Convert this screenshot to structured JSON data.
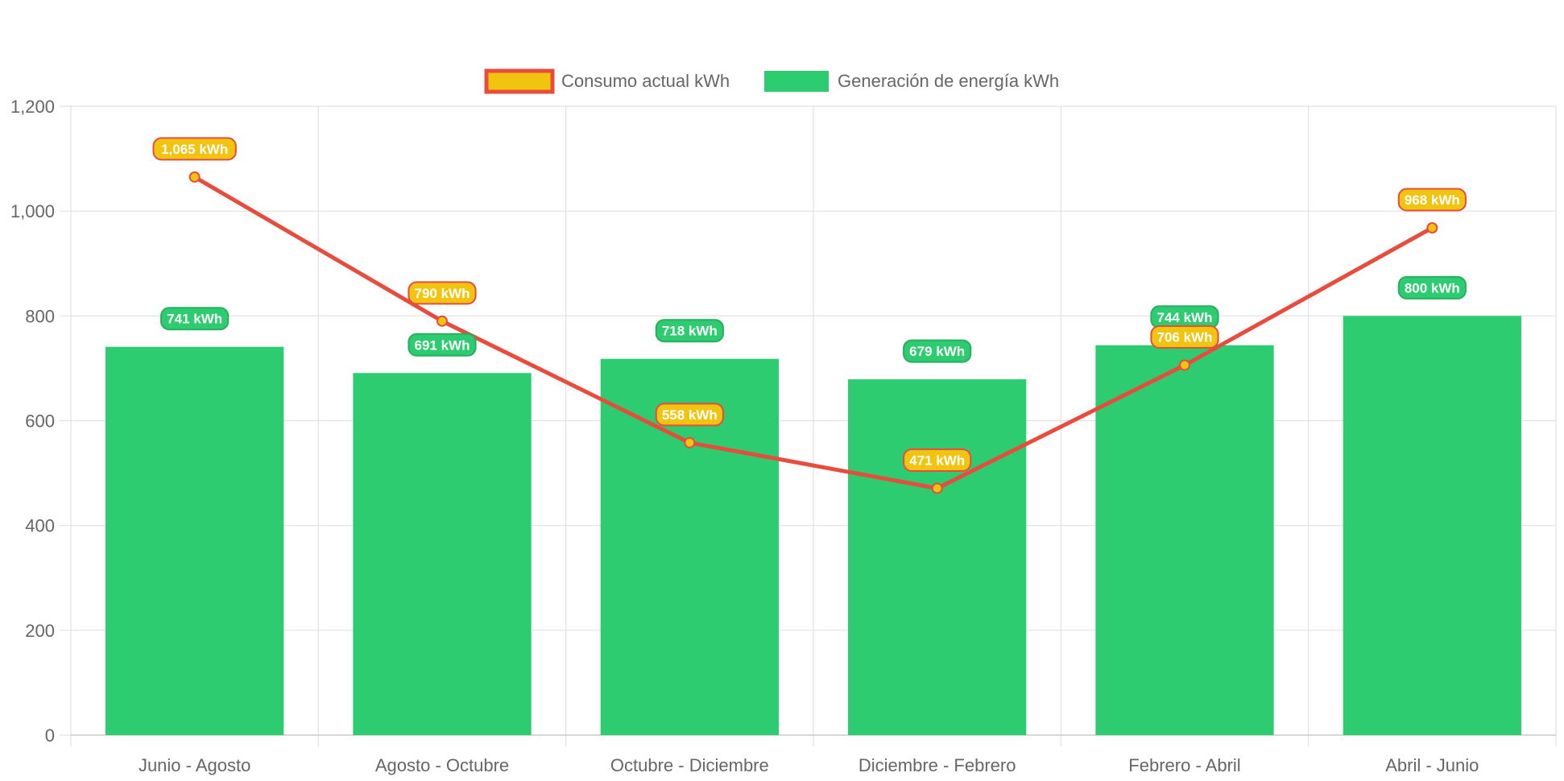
{
  "chart_data": {
    "type": "bar",
    "categories": [
      "Junio - Agosto",
      "Agosto - Octubre",
      "Octubre - Diciembre",
      "Diciembre - Febrero",
      "Febrero - Abril",
      "Abril - Junio"
    ],
    "series": [
      {
        "name": "Consumo actual kWh",
        "type": "line",
        "values": [
          1065,
          790,
          558,
          471,
          706,
          968
        ],
        "labels": [
          "1,065 kWh",
          "790 kWh",
          "558 kWh",
          "471 kWh",
          "706 kWh",
          "968 kWh"
        ],
        "line_color": "#e74c3c",
        "fill_color": "#f1c40f"
      },
      {
        "name": "Generación de energía kWh",
        "type": "bar",
        "values": [
          741,
          691,
          718,
          679,
          744,
          800
        ],
        "labels": [
          "741 kWh",
          "691 kWh",
          "718 kWh",
          "679 kWh",
          "744 kWh",
          "800 kWh"
        ],
        "color": "#2ecc71"
      }
    ],
    "y_ticks": [
      "0",
      "200",
      "400",
      "600",
      "800",
      "1,000",
      "1,200"
    ],
    "ylim": [
      0,
      1200
    ],
    "grid": true,
    "legend_position": "top-center"
  }
}
